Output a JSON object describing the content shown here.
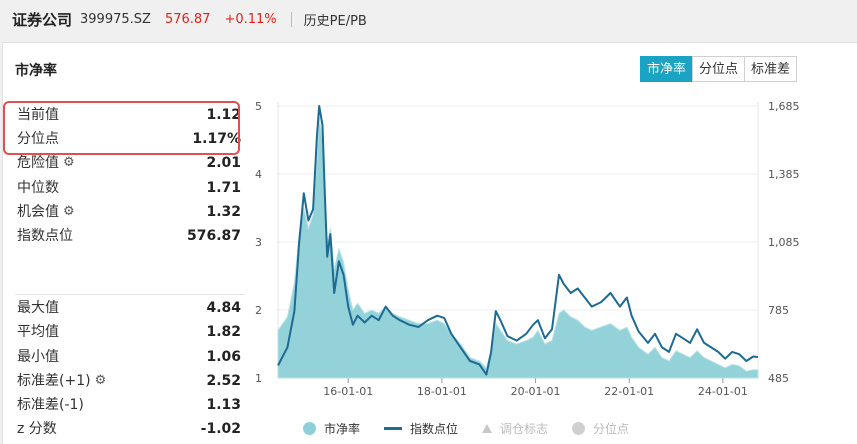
{
  "header": {
    "title": "证券公司",
    "code": "399975.SZ",
    "price": "576.87",
    "change": "+0.11%",
    "history_link": "历史PE/PB"
  },
  "card": {
    "title": "市净率",
    "tabs": [
      {
        "label": "市净率",
        "active": true
      },
      {
        "label": "分位点",
        "active": false
      },
      {
        "label": "标准差",
        "active": false
      }
    ]
  },
  "stats": {
    "current": {
      "label": "当前值",
      "value": "1.12"
    },
    "percentile": {
      "label": "分位点",
      "value": "1.17%"
    },
    "danger": {
      "label": "危险值",
      "value": "2.01"
    },
    "median": {
      "label": "中位数",
      "value": "1.71"
    },
    "opportunity": {
      "label": "机会值",
      "value": "1.32"
    },
    "index_point": {
      "label": "指数点位",
      "value": "576.87"
    },
    "max": {
      "label": "最大值",
      "value": "4.84"
    },
    "mean": {
      "label": "平均值",
      "value": "1.82"
    },
    "min": {
      "label": "最小值",
      "value": "1.06"
    },
    "std_plus": {
      "label": "标准差(+1)",
      "value": "2.52"
    },
    "std_minus": {
      "label": "标准差(-1)",
      "value": "1.13"
    },
    "zscore": {
      "label": "z 分数",
      "value": "-1.02"
    }
  },
  "legend": {
    "pb": "市净率",
    "index": "指数点位",
    "adjust": "调仓标志",
    "pct": "分位点"
  },
  "colors": {
    "pb_fill": "#8fd0d8",
    "index_line": "#1d6a92",
    "accent": "#1aa3c2",
    "price_red": "#e2231a",
    "highlight": "#e05050"
  },
  "chart_data": {
    "type": "area",
    "left_axis": {
      "ticks": [
        "1",
        "2",
        "3",
        "4",
        "5"
      ],
      "ylim": [
        1,
        5
      ]
    },
    "right_axis": {
      "ticks": [
        "485",
        "785",
        "1,085",
        "1,385",
        "1,685"
      ],
      "ylim": [
        485,
        1685
      ]
    },
    "x_ticks": [
      "16-01-01",
      "18-01-01",
      "20-01-01",
      "22-01-01",
      "24-01-01"
    ],
    "x_tick_positions": [
      2016.0,
      2018.0,
      2020.0,
      2022.0,
      2024.0
    ],
    "xlim": [
      2014.5,
      2024.75
    ],
    "series": [
      {
        "name": "市净率",
        "axis": "left",
        "points": [
          [
            2014.5,
            1.7
          ],
          [
            2014.7,
            1.9
          ],
          [
            2014.85,
            2.4
          ],
          [
            2014.95,
            3.1
          ],
          [
            2015.05,
            3.5
          ],
          [
            2015.15,
            3.2
          ],
          [
            2015.25,
            3.4
          ],
          [
            2015.33,
            4.2
          ],
          [
            2015.38,
            4.84
          ],
          [
            2015.45,
            4.5
          ],
          [
            2015.5,
            3.6
          ],
          [
            2015.55,
            3.0
          ],
          [
            2015.62,
            3.2
          ],
          [
            2015.7,
            2.6
          ],
          [
            2015.8,
            2.9
          ],
          [
            2015.9,
            2.7
          ],
          [
            2016.0,
            2.3
          ],
          [
            2016.1,
            2.0
          ],
          [
            2016.2,
            2.1
          ],
          [
            2016.35,
            1.95
          ],
          [
            2016.5,
            2.0
          ],
          [
            2016.65,
            1.95
          ],
          [
            2016.8,
            2.05
          ],
          [
            2016.95,
            1.95
          ],
          [
            2017.1,
            1.9
          ],
          [
            2017.3,
            1.85
          ],
          [
            2017.5,
            1.8
          ],
          [
            2017.7,
            1.8
          ],
          [
            2017.9,
            1.85
          ],
          [
            2018.05,
            1.8
          ],
          [
            2018.2,
            1.65
          ],
          [
            2018.4,
            1.5
          ],
          [
            2018.6,
            1.3
          ],
          [
            2018.8,
            1.25
          ],
          [
            2018.95,
            1.15
          ],
          [
            2019.05,
            1.4
          ],
          [
            2019.15,
            1.8
          ],
          [
            2019.25,
            1.7
          ],
          [
            2019.4,
            1.55
          ],
          [
            2019.6,
            1.5
          ],
          [
            2019.8,
            1.55
          ],
          [
            2019.95,
            1.6
          ],
          [
            2020.05,
            1.7
          ],
          [
            2020.2,
            1.5
          ],
          [
            2020.35,
            1.55
          ],
          [
            2020.5,
            1.95
          ],
          [
            2020.6,
            2.0
          ],
          [
            2020.75,
            1.9
          ],
          [
            2020.9,
            1.85
          ],
          [
            2021.05,
            1.75
          ],
          [
            2021.2,
            1.7
          ],
          [
            2021.4,
            1.75
          ],
          [
            2021.6,
            1.8
          ],
          [
            2021.8,
            1.7
          ],
          [
            2021.95,
            1.75
          ],
          [
            2022.05,
            1.6
          ],
          [
            2022.2,
            1.45
          ],
          [
            2022.4,
            1.35
          ],
          [
            2022.55,
            1.45
          ],
          [
            2022.7,
            1.3
          ],
          [
            2022.85,
            1.25
          ],
          [
            2023.0,
            1.4
          ],
          [
            2023.15,
            1.35
          ],
          [
            2023.3,
            1.3
          ],
          [
            2023.45,
            1.4
          ],
          [
            2023.6,
            1.3
          ],
          [
            2023.75,
            1.25
          ],
          [
            2023.9,
            1.2
          ],
          [
            2024.05,
            1.15
          ],
          [
            2024.2,
            1.2
          ],
          [
            2024.35,
            1.18
          ],
          [
            2024.5,
            1.1
          ],
          [
            2024.65,
            1.12
          ],
          [
            2024.75,
            1.12
          ]
        ]
      },
      {
        "name": "指数点位",
        "axis": "right",
        "points": [
          [
            2014.5,
            540
          ],
          [
            2014.7,
            620
          ],
          [
            2014.85,
            780
          ],
          [
            2014.95,
            1080
          ],
          [
            2015.05,
            1300
          ],
          [
            2015.15,
            1180
          ],
          [
            2015.25,
            1230
          ],
          [
            2015.33,
            1550
          ],
          [
            2015.38,
            1685
          ],
          [
            2015.45,
            1600
          ],
          [
            2015.5,
            1300
          ],
          [
            2015.55,
            1020
          ],
          [
            2015.62,
            1120
          ],
          [
            2015.7,
            860
          ],
          [
            2015.8,
            1000
          ],
          [
            2015.9,
            940
          ],
          [
            2016.0,
            800
          ],
          [
            2016.1,
            720
          ],
          [
            2016.2,
            760
          ],
          [
            2016.35,
            730
          ],
          [
            2016.5,
            760
          ],
          [
            2016.65,
            740
          ],
          [
            2016.8,
            800
          ],
          [
            2016.95,
            760
          ],
          [
            2017.1,
            740
          ],
          [
            2017.3,
            720
          ],
          [
            2017.5,
            710
          ],
          [
            2017.7,
            740
          ],
          [
            2017.9,
            760
          ],
          [
            2018.05,
            750
          ],
          [
            2018.2,
            680
          ],
          [
            2018.4,
            620
          ],
          [
            2018.6,
            560
          ],
          [
            2018.8,
            545
          ],
          [
            2018.95,
            500
          ],
          [
            2019.05,
            600
          ],
          [
            2019.15,
            780
          ],
          [
            2019.25,
            740
          ],
          [
            2019.4,
            670
          ],
          [
            2019.6,
            650
          ],
          [
            2019.8,
            680
          ],
          [
            2019.95,
            720
          ],
          [
            2020.05,
            740
          ],
          [
            2020.2,
            660
          ],
          [
            2020.35,
            700
          ],
          [
            2020.5,
            940
          ],
          [
            2020.6,
            900
          ],
          [
            2020.75,
            860
          ],
          [
            2020.9,
            880
          ],
          [
            2021.05,
            840
          ],
          [
            2021.2,
            800
          ],
          [
            2021.4,
            820
          ],
          [
            2021.6,
            860
          ],
          [
            2021.8,
            800
          ],
          [
            2021.95,
            840
          ],
          [
            2022.05,
            760
          ],
          [
            2022.2,
            690
          ],
          [
            2022.4,
            640
          ],
          [
            2022.55,
            680
          ],
          [
            2022.7,
            620
          ],
          [
            2022.85,
            600
          ],
          [
            2023.0,
            680
          ],
          [
            2023.15,
            660
          ],
          [
            2023.3,
            640
          ],
          [
            2023.45,
            700
          ],
          [
            2023.6,
            640
          ],
          [
            2023.75,
            620
          ],
          [
            2023.9,
            600
          ],
          [
            2024.05,
            570
          ],
          [
            2024.2,
            600
          ],
          [
            2024.35,
            590
          ],
          [
            2024.5,
            560
          ],
          [
            2024.65,
            580
          ],
          [
            2024.75,
            577
          ]
        ]
      }
    ],
    "grid": true,
    "legend_position": "bottom"
  }
}
